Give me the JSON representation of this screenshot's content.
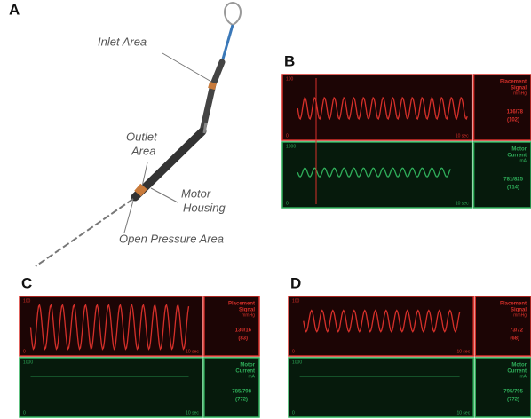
{
  "figure": {
    "panel_a": {
      "label": "A",
      "callouts": [
        {
          "lines": [
            "Inlet Area"
          ]
        },
        {
          "lines": [
            "Outlet",
            "Area"
          ]
        },
        {
          "lines": [
            "Motor",
            "Housing"
          ]
        },
        {
          "lines": [
            "Open Pressure Area"
          ]
        }
      ]
    },
    "monitors": [
      {
        "label": "B",
        "top": {
          "scale_max": "100",
          "scale_min": "0",
          "time": "10 sec",
          "title": [
            "Placement",
            "Signal"
          ],
          "unit": "mmHg",
          "reading": "136/78",
          "mean": "(102)"
        },
        "bottom": {
          "scale_max": "1000",
          "scale_min": "0",
          "time": "10 sec",
          "title": [
            "Motor",
            "Current"
          ],
          "unit": "mA",
          "reading": "781/825",
          "mean": "(714)"
        }
      },
      {
        "label": "C",
        "top": {
          "scale_max": "100",
          "scale_min": "0",
          "time": "10 sec",
          "title": [
            "Placement",
            "Signal"
          ],
          "unit": "mmHg",
          "reading": "130/16",
          "mean": "(83)"
        },
        "bottom": {
          "scale_max": "1000",
          "scale_min": "0",
          "time": "10 sec",
          "title": [
            "Motor",
            "Current"
          ],
          "unit": "mA",
          "reading": "785/798",
          "mean": "(772)"
        }
      },
      {
        "label": "D",
        "top": {
          "scale_max": "100",
          "scale_min": "0",
          "time": "10 sec",
          "title": [
            "Placement",
            "Signal"
          ],
          "unit": "mmHg",
          "reading": "73/72",
          "mean": "(68)"
        },
        "bottom": {
          "scale_max": "1000",
          "scale_min": "0",
          "time": "10 sec",
          "title": [
            "Motor",
            "Current"
          ],
          "unit": "mA",
          "reading": "795/795",
          "mean": "(772)"
        }
      }
    ]
  }
}
